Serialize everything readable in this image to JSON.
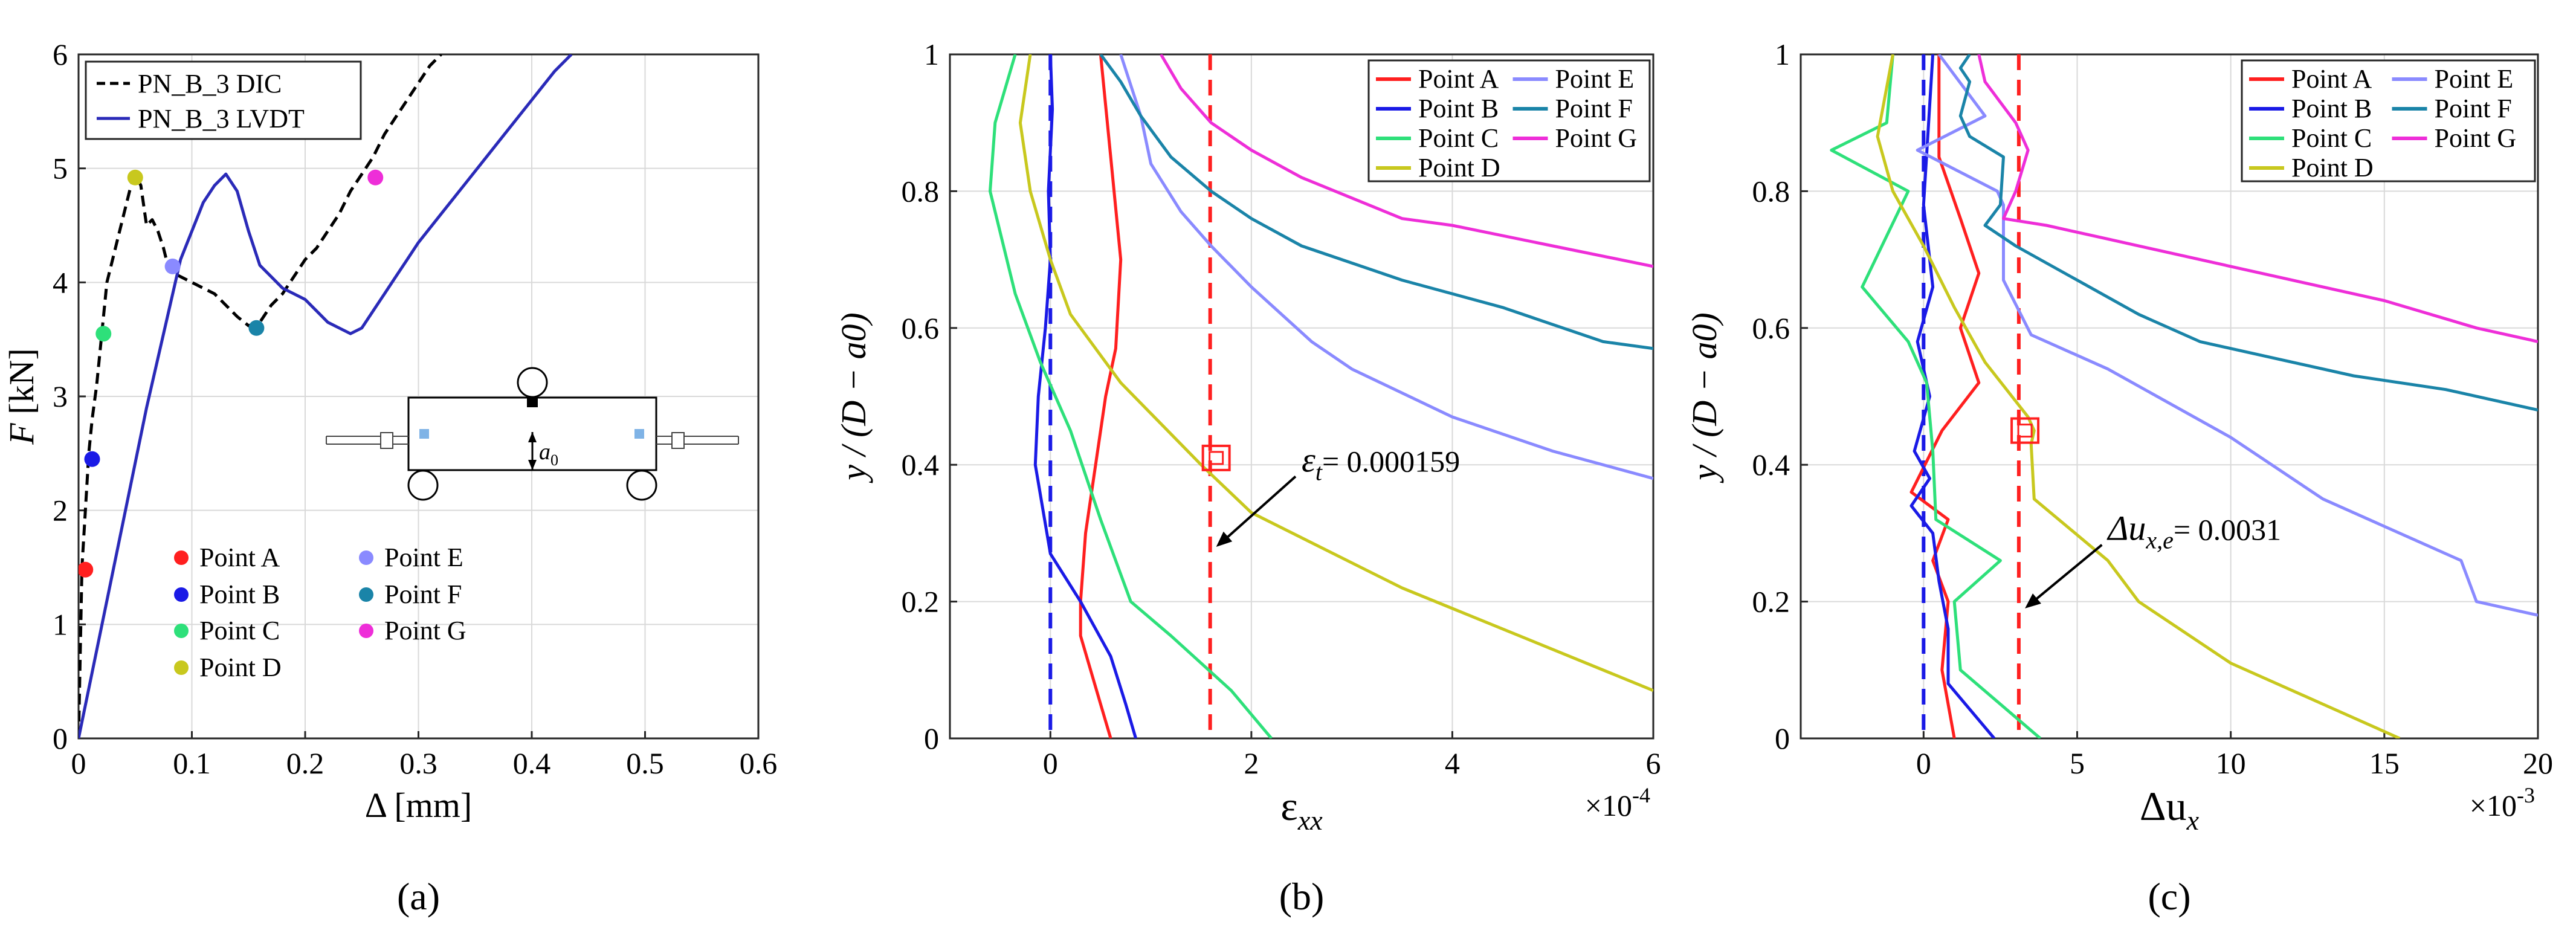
{
  "chart_data": [
    {
      "id": "a",
      "type": "line",
      "panel_label": "(a)",
      "xlabel_parts": [
        "Δ [mm]"
      ],
      "ylabel_italic": "F",
      "ylabel_rest": " [kN]",
      "xlim": [
        0,
        0.6
      ],
      "ylim": [
        0,
        6
      ],
      "xticks": [
        0,
        0.1,
        0.2,
        0.3,
        0.4,
        0.5,
        0.6
      ],
      "yticks": [
        0,
        1,
        2,
        3,
        4,
        5,
        6
      ],
      "grid": true,
      "legend_position": "top-left",
      "series": [
        {
          "name": "PN_B_3 DIC",
          "color": "#000000",
          "dash": "18,10",
          "x": [
            0,
            0.003,
            0.006,
            0.009,
            0.012,
            0.016,
            0.02,
            0.025,
            0.03,
            0.035,
            0.04,
            0.045,
            0.05,
            0.055,
            0.06,
            0.065,
            0.07,
            0.075,
            0.08,
            0.09,
            0.1,
            0.11,
            0.12,
            0.13,
            0.14,
            0.15,
            0.16,
            0.17,
            0.18,
            0.19,
            0.2,
            0.21,
            0.22,
            0.23,
            0.24,
            0.25,
            0.26,
            0.27,
            0.28,
            0.29,
            0.3,
            0.31,
            0.32
          ],
          "y": [
            0,
            1.5,
            2.0,
            2.5,
            2.8,
            3.1,
            3.5,
            4.0,
            4.2,
            4.4,
            4.6,
            4.8,
            4.95,
            4.85,
            4.5,
            4.55,
            4.45,
            4.3,
            4.1,
            4.05,
            4.0,
            3.95,
            3.9,
            3.8,
            3.7,
            3.62,
            3.65,
            3.8,
            3.9,
            4.05,
            4.2,
            4.3,
            4.45,
            4.6,
            4.8,
            4.95,
            5.1,
            5.3,
            5.45,
            5.6,
            5.75,
            5.9,
            6.0
          ]
        },
        {
          "name": "PN_B_3 LVDT",
          "color": "#2a2ab8",
          "dash": "",
          "x": [
            0,
            0.03,
            0.06,
            0.09,
            0.11,
            0.12,
            0.13,
            0.14,
            0.15,
            0.16,
            0.17,
            0.18,
            0.19,
            0.2,
            0.21,
            0.22,
            0.23,
            0.24,
            0.25,
            0.26,
            0.27,
            0.28,
            0.29,
            0.3,
            0.32,
            0.34,
            0.36,
            0.38,
            0.4,
            0.42,
            0.435
          ],
          "y": [
            0,
            1.45,
            2.9,
            4.2,
            4.7,
            4.85,
            4.95,
            4.8,
            4.45,
            4.15,
            4.05,
            3.95,
            3.9,
            3.85,
            3.75,
            3.65,
            3.6,
            3.55,
            3.6,
            3.75,
            3.9,
            4.05,
            4.2,
            4.35,
            4.6,
            4.85,
            5.1,
            5.35,
            5.6,
            5.85,
            6.0
          ]
        }
      ],
      "points": [
        {
          "name": "Point A",
          "color": "#ff1f1f",
          "x": 0.006,
          "y": 1.48
        },
        {
          "name": "Point B",
          "color": "#1a1ae6",
          "x": 0.012,
          "y": 2.45
        },
        {
          "name": "Point C",
          "color": "#2ee07a",
          "x": 0.022,
          "y": 3.55
        },
        {
          "name": "Point D",
          "color": "#c8c81e",
          "x": 0.05,
          "y": 4.92
        },
        {
          "name": "Point E",
          "color": "#8a8aff",
          "x": 0.083,
          "y": 4.14
        },
        {
          "name": "Point F",
          "color": "#1a84a8",
          "x": 0.157,
          "y": 3.6
        },
        {
          "name": "Point G",
          "color": "#ee2ed8",
          "x": 0.262,
          "y": 4.92
        }
      ],
      "inset_label": "a"
    },
    {
      "id": "b",
      "type": "line",
      "panel_label": "(b)",
      "xlabel": "ε",
      "xlabel_sub": "xx",
      "ylabel": "y / (D − a0)",
      "exponent_label": "×10",
      "exponent_power": "-4",
      "xlim": [
        -1,
        6
      ],
      "ylim": [
        0,
        1
      ],
      "xticks": [
        0,
        2,
        4,
        6
      ],
      "yticks": [
        0,
        0.2,
        0.4,
        0.6,
        0.8,
        1
      ],
      "grid": true,
      "legend_position": "top-right",
      "series": [
        {
          "name": "Point A",
          "color": "#ff1f1f",
          "x": [
            0.6,
            0.5,
            0.4,
            0.3,
            0.3,
            0.35,
            0.45,
            0.55,
            0.65,
            0.7,
            0.6,
            0.5
          ],
          "y": [
            0,
            0.05,
            0.1,
            0.15,
            0.2,
            0.3,
            0.4,
            0.5,
            0.57,
            0.7,
            0.85,
            1
          ]
        },
        {
          "name": "Point B",
          "color": "#1a1ae6",
          "x": [
            0.85,
            0.75,
            0.6,
            0.3,
            0.0,
            -0.15,
            -0.12,
            -0.05,
            0.0,
            -0.02,
            0.02,
            0.0
          ],
          "y": [
            0,
            0.05,
            0.12,
            0.2,
            0.27,
            0.4,
            0.5,
            0.6,
            0.7,
            0.8,
            0.92,
            1
          ]
        },
        {
          "name": "Point C",
          "color": "#2ee07a",
          "x": [
            2.2,
            1.8,
            1.2,
            0.8,
            0.5,
            0.2,
            -0.1,
            -0.35,
            -0.6,
            -0.55,
            -0.35
          ],
          "y": [
            0,
            0.07,
            0.15,
            0.2,
            0.32,
            0.45,
            0.55,
            0.65,
            0.8,
            0.9,
            1
          ]
        },
        {
          "name": "Point D",
          "color": "#c8c81e",
          "x": [
            6.0,
            5.0,
            3.5,
            2.0,
            1.5,
            0.7,
            0.2,
            0.0,
            -0.2,
            -0.3,
            -0.2
          ],
          "y": [
            0.07,
            0.13,
            0.22,
            0.33,
            0.4,
            0.52,
            0.62,
            0.7,
            0.8,
            0.9,
            1
          ]
        },
        {
          "name": "Point E",
          "color": "#8a8aff",
          "x": [
            6.0,
            5.0,
            4.0,
            3.0,
            2.6,
            2.0,
            1.6,
            1.3,
            1.0,
            0.9,
            0.7
          ],
          "y": [
            0.38,
            0.42,
            0.47,
            0.54,
            0.58,
            0.66,
            0.72,
            0.77,
            0.84,
            0.91,
            1
          ]
        },
        {
          "name": "Point F",
          "color": "#1a84a8",
          "x": [
            6.0,
            5.5,
            4.5,
            3.5,
            2.5,
            2.0,
            1.6,
            1.2,
            0.9,
            0.7,
            0.5
          ],
          "y": [
            0.57,
            0.58,
            0.63,
            0.67,
            0.72,
            0.76,
            0.8,
            0.85,
            0.91,
            0.96,
            1
          ]
        },
        {
          "name": "Point G",
          "color": "#ee2ed8",
          "x": [
            6.0,
            5.0,
            4.0,
            3.5,
            3.0,
            2.5,
            2.0,
            1.6,
            1.3,
            1.1
          ],
          "y": [
            0.69,
            0.72,
            0.75,
            0.76,
            0.79,
            0.82,
            0.86,
            0.9,
            0.95,
            1
          ]
        }
      ],
      "vlines": [
        {
          "x": 0,
          "color": "#1a1ae6"
        },
        {
          "x": 1.59,
          "color": "#ff2020"
        }
      ],
      "marker": {
        "x": 1.65,
        "y": 0.41
      },
      "annotation": {
        "symbol": "ε",
        "sub": "t",
        "text": "= 0.000159",
        "arrow_to": [
          1.65,
          0.28
        ],
        "label_at": [
          2.5,
          0.39
        ]
      }
    },
    {
      "id": "c",
      "type": "line",
      "panel_label": "(c)",
      "xlabel": "Δu",
      "xlabel_sub": "x",
      "ylabel": "y / (D − a0)",
      "exponent_label": "×10",
      "exponent_power": "-3",
      "xlim": [
        -4,
        20
      ],
      "ylim": [
        0,
        1
      ],
      "xticks": [
        0,
        5,
        10,
        15,
        20
      ],
      "yticks": [
        0,
        0.2,
        0.4,
        0.6,
        0.8,
        1
      ],
      "grid": true,
      "legend_position": "top-right",
      "series": [
        {
          "name": "Point A",
          "color": "#ff1f1f",
          "x": [
            1.0,
            0.6,
            0.8,
            0.3,
            0.8,
            -0.4,
            0.6,
            1.8,
            1.2,
            1.8,
            1.2,
            0.5,
            0.5
          ],
          "y": [
            0,
            0.1,
            0.2,
            0.26,
            0.32,
            0.36,
            0.45,
            0.52,
            0.6,
            0.68,
            0.76,
            0.85,
            1
          ]
        },
        {
          "name": "Point B",
          "color": "#1a1ae6",
          "x": [
            2.3,
            0.8,
            0.8,
            0.5,
            0.3,
            -0.4,
            0.2,
            -0.3,
            0.2,
            -0.2,
            0.3,
            0.0,
            0.3
          ],
          "y": [
            0,
            0.08,
            0.16,
            0.23,
            0.3,
            0.34,
            0.38,
            0.42,
            0.5,
            0.58,
            0.66,
            0.78,
            1
          ]
        },
        {
          "name": "Point C",
          "color": "#2ee07a",
          "x": [
            3.8,
            1.2,
            1.0,
            2.5,
            0.4,
            0.3,
            0.1,
            -0.5,
            -2.0,
            -0.5,
            -3.0,
            -1.2,
            -1.0
          ],
          "y": [
            0,
            0.1,
            0.2,
            0.26,
            0.32,
            0.42,
            0.52,
            0.58,
            0.66,
            0.8,
            0.86,
            0.9,
            1
          ]
        },
        {
          "name": "Point D",
          "color": "#c8c81e",
          "x": [
            15.5,
            13.0,
            10.0,
            7.0,
            6.0,
            3.6,
            3.5,
            3.6,
            3.4,
            2.0,
            1.0,
            0.0,
            -1.0,
            -1.5,
            -1.0
          ],
          "y": [
            0,
            0.05,
            0.11,
            0.2,
            0.26,
            0.35,
            0.43,
            0.45,
            0.47,
            0.55,
            0.63,
            0.72,
            0.8,
            0.88,
            1
          ]
        },
        {
          "name": "Point E",
          "color": "#8a8aff",
          "x": [
            20.0,
            18.0,
            17.5,
            15.0,
            13.0,
            10.0,
            8.0,
            6.0,
            3.5,
            2.6,
            2.6,
            2.4,
            -0.2,
            2.0,
            0.5
          ],
          "y": [
            0.18,
            0.2,
            0.26,
            0.31,
            0.35,
            0.44,
            0.49,
            0.54,
            0.59,
            0.67,
            0.78,
            0.8,
            0.86,
            0.91,
            1
          ]
        },
        {
          "name": "Point F",
          "color": "#1a84a8",
          "x": [
            20.0,
            17.0,
            14.0,
            9.0,
            7.0,
            5.0,
            3.0,
            2.0,
            2.5,
            2.6,
            1.5,
            1.2,
            1.5,
            1.2,
            1.5
          ],
          "y": [
            0.48,
            0.51,
            0.53,
            0.58,
            0.62,
            0.67,
            0.72,
            0.75,
            0.78,
            0.85,
            0.88,
            0.91,
            0.96,
            0.98,
            1
          ]
        },
        {
          "name": "Point G",
          "color": "#ee2ed8",
          "x": [
            20.0,
            18.0,
            15.0,
            12.0,
            9.0,
            6.0,
            4.0,
            2.6,
            3.0,
            3.4,
            3.0,
            2.0,
            1.8
          ],
          "y": [
            0.58,
            0.6,
            0.64,
            0.67,
            0.7,
            0.73,
            0.75,
            0.76,
            0.8,
            0.86,
            0.9,
            0.96,
            1
          ]
        }
      ],
      "vlines": [
        {
          "x": 0,
          "color": "#1a1ae6"
        },
        {
          "x": 3.1,
          "color": "#ff2020"
        }
      ],
      "marker": {
        "x": 3.3,
        "y": 0.45
      },
      "annotation": {
        "symbol": "Δu",
        "sub": "x,e",
        "text": "= 0.0031",
        "arrow_to": [
          3.3,
          0.19
        ],
        "label_at": [
          6.0,
          0.29
        ]
      }
    }
  ],
  "legend_a_labels": [
    "PN_B_3 DIC",
    "PN_B_3 LVDT"
  ],
  "legend_points": [
    "Point A",
    "Point B",
    "Point C",
    "Point D",
    "Point E",
    "Point F",
    "Point G"
  ],
  "colors": {
    "point_a": "#ff1f1f",
    "point_b": "#1a1ae6",
    "point_c": "#2ee07a",
    "point_d": "#c8c81e",
    "point_e": "#8a8aff",
    "point_f": "#1a84a8",
    "point_g": "#ee2ed8",
    "lvdt": "#2a2ab8"
  }
}
